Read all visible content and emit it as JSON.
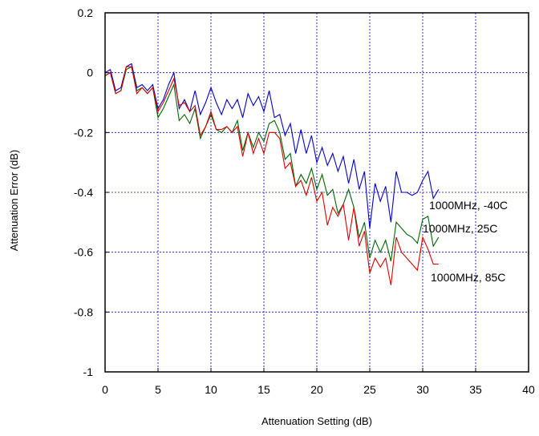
{
  "chart_data": {
    "type": "line",
    "title": "",
    "xlabel": "Attenuation Setting (dB)",
    "ylabel": "Attenuation Error (dB)",
    "xlim": [
      0,
      40
    ],
    "ylim": [
      -1,
      0.2
    ],
    "xticks": [
      0,
      5,
      10,
      15,
      20,
      25,
      30,
      35,
      40
    ],
    "yticks": [
      0.2,
      0,
      -0.2,
      -0.4,
      -0.6,
      -0.8,
      -1
    ],
    "xtick_labels": [
      "0",
      "5",
      "10",
      "15",
      "20",
      "25",
      "30",
      "35",
      "40"
    ],
    "ytick_labels": [
      "0.2",
      "0",
      "-0.2",
      "-0.4",
      "-0.6",
      "-0.8",
      "-1"
    ],
    "grid": true,
    "legend": "none",
    "x": [
      0,
      0.5,
      1,
      1.5,
      2,
      2.5,
      3,
      3.5,
      4,
      4.5,
      5,
      5.5,
      6,
      6.5,
      7,
      7.5,
      8,
      8.5,
      9,
      9.5,
      10,
      10.5,
      11,
      11.5,
      12,
      12.5,
      13,
      13.5,
      14,
      14.5,
      15,
      15.5,
      16,
      16.5,
      17,
      17.5,
      18,
      18.5,
      19,
      19.5,
      20,
      20.5,
      21,
      21.5,
      22,
      22.5,
      23,
      23.5,
      24,
      24.5,
      25,
      25.5,
      26,
      26.5,
      27,
      27.5,
      28,
      28.5,
      29,
      29.5,
      30,
      30.5,
      31,
      31.5
    ],
    "series": [
      {
        "name": "1000MHz, -40C",
        "color": "#0000cc",
        "values": [
          0,
          0.01,
          -0.06,
          -0.05,
          0.02,
          0.03,
          -0.05,
          -0.04,
          -0.06,
          -0.04,
          -0.12,
          -0.09,
          -0.04,
          0,
          -0.12,
          -0.09,
          -0.13,
          -0.06,
          -0.14,
          -0.1,
          -0.05,
          -0.1,
          -0.14,
          -0.09,
          -0.12,
          -0.09,
          -0.15,
          -0.07,
          -0.11,
          -0.08,
          -0.13,
          -0.06,
          -0.15,
          -0.14,
          -0.21,
          -0.17,
          -0.27,
          -0.19,
          -0.27,
          -0.21,
          -0.3,
          -0.25,
          -0.31,
          -0.27,
          -0.33,
          -0.28,
          -0.37,
          -0.29,
          -0.39,
          -0.33,
          -0.52,
          -0.37,
          -0.43,
          -0.38,
          -0.5,
          -0.33,
          -0.4,
          -0.4,
          -0.41,
          -0.4,
          -0.36,
          -0.33,
          -0.42,
          -0.39
        ]
      },
      {
        "name": "1000MHz, 25C",
        "color": "#006600",
        "values": [
          -0.01,
          0,
          -0.07,
          -0.06,
          0.01,
          0.02,
          -0.06,
          -0.05,
          -0.07,
          -0.05,
          -0.15,
          -0.12,
          -0.08,
          -0.04,
          -0.16,
          -0.14,
          -0.17,
          -0.12,
          -0.22,
          -0.18,
          -0.14,
          -0.19,
          -0.2,
          -0.18,
          -0.2,
          -0.16,
          -0.26,
          -0.2,
          -0.25,
          -0.2,
          -0.23,
          -0.17,
          -0.16,
          -0.2,
          -0.29,
          -0.27,
          -0.38,
          -0.34,
          -0.37,
          -0.32,
          -0.39,
          -0.34,
          -0.41,
          -0.39,
          -0.47,
          -0.44,
          -0.39,
          -0.45,
          -0.55,
          -0.5,
          -0.62,
          -0.56,
          -0.6,
          -0.56,
          -0.63,
          -0.5,
          -0.52,
          -0.54,
          -0.55,
          -0.57,
          -0.49,
          -0.48,
          -0.58,
          -0.55
        ]
      },
      {
        "name": "1000MHz, 85C",
        "color": "#dd0000",
        "values": [
          -0.01,
          0,
          -0.07,
          -0.06,
          0.02,
          0.02,
          -0.07,
          -0.05,
          -0.07,
          -0.05,
          -0.13,
          -0.1,
          -0.06,
          -0.02,
          -0.11,
          -0.1,
          -0.13,
          -0.11,
          -0.21,
          -0.18,
          -0.13,
          -0.19,
          -0.19,
          -0.18,
          -0.2,
          -0.18,
          -0.28,
          -0.2,
          -0.27,
          -0.22,
          -0.27,
          -0.2,
          -0.2,
          -0.22,
          -0.32,
          -0.3,
          -0.38,
          -0.36,
          -0.41,
          -0.35,
          -0.43,
          -0.4,
          -0.51,
          -0.45,
          -0.48,
          -0.44,
          -0.56,
          -0.45,
          -0.58,
          -0.53,
          -0.67,
          -0.62,
          -0.65,
          -0.62,
          -0.71,
          -0.55,
          -0.6,
          -0.62,
          -0.64,
          -0.66,
          -0.55,
          -0.59,
          -0.64,
          -0.64
        ]
      }
    ],
    "annotations": [
      {
        "text": "1000MHz, -40C",
        "series": 0
      },
      {
        "text": "1000MHz, 25C",
        "series": 1
      },
      {
        "text": "1000MHz, 85C",
        "series": 2
      }
    ]
  }
}
